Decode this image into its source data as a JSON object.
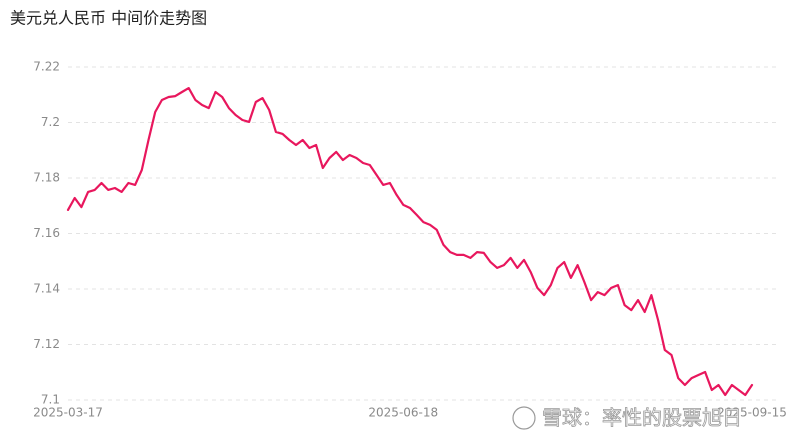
{
  "chart_data": {
    "type": "line",
    "title": "美元兑人民币 中间价走势图",
    "annotation": "雪球：率性的股票旭日",
    "ylim": [
      7.1,
      7.22
    ],
    "yticks": [
      7.1,
      7.12,
      7.14,
      7.16,
      7.18,
      7.2,
      7.22
    ],
    "grid": true,
    "color": "#e8175d",
    "categories": [
      "2025-03-17",
      null,
      null,
      null,
      null,
      null,
      null,
      null,
      null,
      null,
      null,
      null,
      null,
      null,
      null,
      null,
      null,
      null,
      null,
      null,
      null,
      null,
      null,
      null,
      null,
      null,
      null,
      null,
      null,
      null,
      null,
      null,
      null,
      null,
      null,
      null,
      null,
      null,
      null,
      null,
      null,
      null,
      null,
      null,
      null,
      null,
      null,
      null,
      null,
      null,
      "2025-06-18",
      null,
      null,
      null,
      null,
      null,
      null,
      null,
      null,
      null,
      null,
      null,
      null,
      null,
      null,
      null,
      null,
      null,
      null,
      null,
      null,
      null,
      null,
      null,
      null,
      null,
      null,
      null,
      null,
      null,
      null,
      null,
      null,
      null,
      null,
      null,
      null,
      null,
      null,
      null,
      null,
      null,
      null,
      null,
      null,
      null,
      null,
      null,
      null,
      null,
      null,
      null,
      "2025-09-15"
    ],
    "values": [
      7.1685,
      7.1728,
      7.1695,
      7.175,
      7.1757,
      7.1782,
      7.1757,
      7.1764,
      7.175,
      7.1782,
      7.1775,
      7.1829,
      7.1937,
      7.2038,
      7.2081,
      7.2092,
      7.2095,
      7.211,
      7.2124,
      7.2081,
      7.2063,
      7.2052,
      7.211,
      7.2092,
      7.2052,
      7.2027,
      7.2009,
      7.2002,
      7.2074,
      7.2088,
      7.2045,
      7.1966,
      7.1959,
      7.1937,
      7.1919,
      7.1937,
      7.1908,
      7.1919,
      7.1836,
      7.1872,
      7.1894,
      7.1865,
      7.1883,
      7.1872,
      7.1854,
      7.1847,
      7.1811,
      7.1775,
      7.1782,
      7.1739,
      7.1703,
      7.1692,
      7.1667,
      7.1641,
      7.1631,
      7.1613,
      7.1559,
      7.1533,
      7.1523,
      7.1523,
      7.1512,
      7.1533,
      7.153,
      7.1497,
      7.1476,
      7.1486,
      7.1512,
      7.1476,
      7.1505,
      7.1461,
      7.1404,
      7.1378,
      7.1414,
      7.1476,
      7.1497,
      7.144,
      7.1486,
      7.1425,
      7.136,
      7.1389,
      7.1378,
      7.1404,
      7.1414,
      7.1342,
      7.1324,
      7.136,
      7.1317,
      7.1378,
      7.1288,
      7.118,
      7.1162,
      7.1079,
      7.1054,
      7.1079,
      7.109,
      7.1101,
      7.1036,
      7.1054,
      7.1018,
      7.1054,
      7.1036,
      7.1018,
      7.1054
    ]
  }
}
